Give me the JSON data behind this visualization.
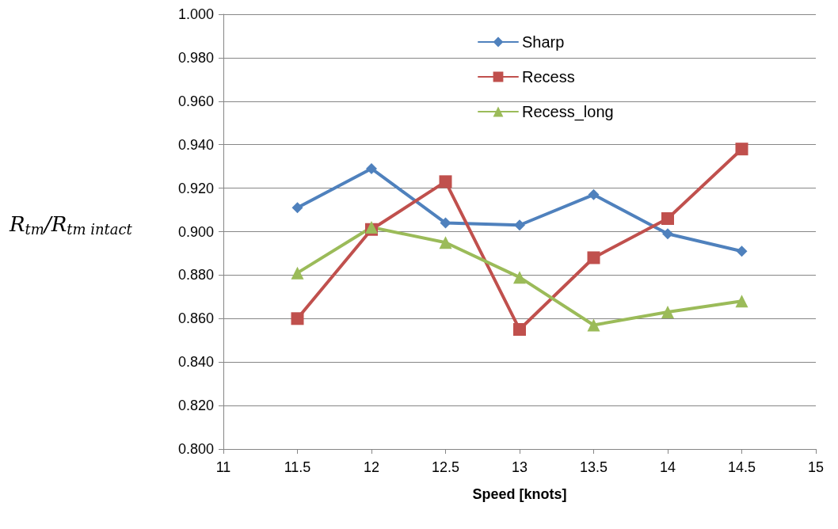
{
  "chart_data": {
    "type": "line",
    "xlabel": "Speed [knots]",
    "ylabel": "R$_{tm}$/R$_{tm intact}$",
    "x": [
      11.5,
      12,
      12.5,
      13,
      13.5,
      14,
      14.5
    ],
    "series": [
      {
        "name": "Sharp",
        "color": "#4f81bd",
        "marker": "diamond",
        "values": [
          0.911,
          0.929,
          0.904,
          0.903,
          0.917,
          0.899,
          0.891
        ]
      },
      {
        "name": "Recess",
        "color": "#c0504d",
        "marker": "square",
        "values": [
          0.86,
          0.901,
          0.923,
          0.855,
          0.888,
          0.906,
          0.938
        ]
      },
      {
        "name": "Recess_long",
        "color": "#9bbb59",
        "marker": "triangle",
        "values": [
          0.881,
          0.902,
          0.895,
          0.879,
          0.857,
          0.863,
          0.868
        ]
      }
    ],
    "xlim": [
      11,
      15
    ],
    "xticks": [
      11,
      11.5,
      12,
      12.5,
      13,
      13.5,
      14,
      14.5,
      15
    ],
    "ylim": [
      0.8,
      1.0
    ],
    "yticks": [
      {
        "value": 0.8,
        "label": "0.800"
      },
      {
        "value": 0.82,
        "label": "0.820"
      },
      {
        "value": 0.84,
        "label": "0.840"
      },
      {
        "value": 0.86,
        "label": "0.860"
      },
      {
        "value": 0.88,
        "label": "0.880"
      },
      {
        "value": 0.9,
        "label": "0.900"
      },
      {
        "value": 0.92,
        "label": "0.920"
      },
      {
        "value": 0.94,
        "label": "0.940"
      },
      {
        "value": 0.96,
        "label": "0.960"
      },
      {
        "value": 0.98,
        "label": "0.980"
      },
      {
        "value": 1.0,
        "label": "1.000"
      }
    ],
    "grid": "y",
    "legend": "top",
    "line_style": "solid"
  }
}
